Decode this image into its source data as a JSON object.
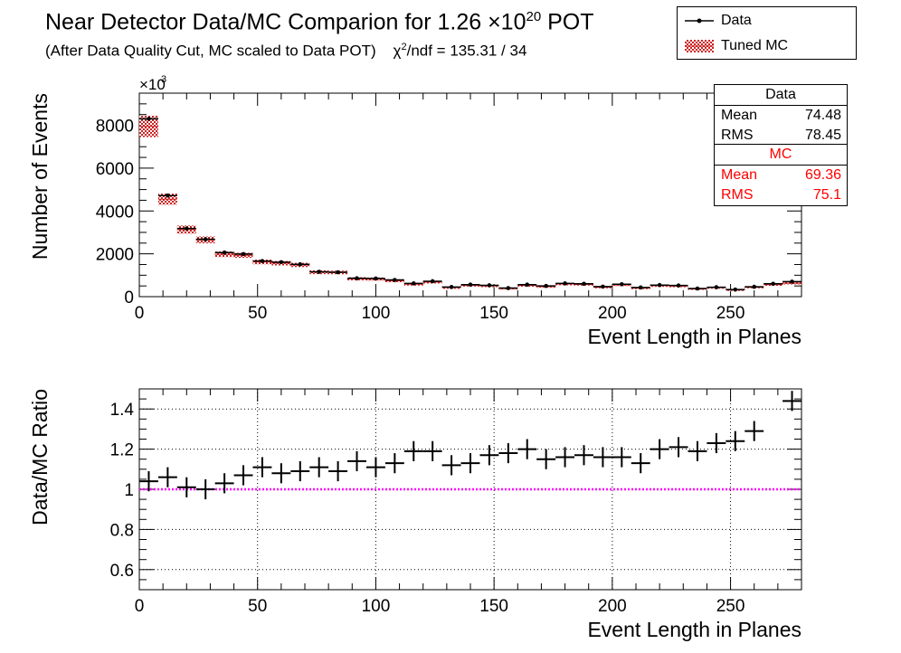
{
  "title": {
    "main": "Near Detector Data/MC Comparion for 1.26 ×10",
    "exp": "20",
    "suffix": " POT"
  },
  "subtitle": {
    "text": "(After Data Quality Cut, MC scaled to Data POT)",
    "chi_prefix": "χ",
    "chi_exp": "2",
    "chi_text": "/ndf = 135.31 / 34"
  },
  "legend": {
    "data_label": "Data",
    "mc_label": "Tuned MC"
  },
  "stats": {
    "data": {
      "header": "Data",
      "mean_label": "Mean",
      "mean": "74.48",
      "rms_label": "RMS",
      "rms": "78.45"
    },
    "mc": {
      "header": "MC",
      "mean_label": "Mean",
      "mean": "69.36",
      "rms_label": "RMS",
      "rms": "75.1"
    }
  },
  "colors": {
    "data": "#000000",
    "mc_fill": "#cc2222",
    "ratio_line": "#ff00ff",
    "grid": "#000000"
  },
  "chart_data": [
    {
      "type": "bar",
      "xlabel": "Event Length in Planes",
      "ylabel": "Number of Events",
      "y_multiplier_label": "×10",
      "y_multiplier_exp": "3",
      "xlim": [
        0,
        280
      ],
      "ylim": [
        0,
        9500
      ],
      "xticks": [
        0,
        50,
        100,
        150,
        200,
        250
      ],
      "yticks": [
        0,
        2000,
        4000,
        6000,
        8000
      ],
      "grid": false,
      "bin_width": 8,
      "x": [
        4,
        12,
        20,
        28,
        36,
        44,
        52,
        60,
        68,
        76,
        84,
        92,
        100,
        108,
        116,
        124,
        132,
        140,
        148,
        156,
        164,
        172,
        180,
        188,
        196,
        204,
        212,
        220,
        228,
        236,
        244,
        252,
        260,
        268,
        276
      ],
      "series": [
        {
          "name": "Data",
          "style": "points",
          "values": [
            8300,
            4720,
            3180,
            2680,
            2060,
            1990,
            1660,
            1610,
            1510,
            1160,
            1140,
            860,
            850,
            780,
            620,
            720,
            450,
            560,
            530,
            400,
            560,
            500,
            620,
            600,
            470,
            580,
            430,
            540,
            520,
            380,
            440,
            330,
            460,
            600,
            700
          ]
        },
        {
          "name": "Tuned MC",
          "style": "band",
          "values": [
            7950,
            4550,
            3130,
            2650,
            1980,
            1930,
            1620,
            1560,
            1480,
            1140,
            1130,
            830,
            820,
            740,
            580,
            680,
            420,
            530,
            500,
            380,
            520,
            470,
            590,
            570,
            440,
            550,
            400,
            510,
            490,
            360,
            420,
            310,
            440,
            560,
            630
          ],
          "errors": [
            500,
            260,
            190,
            160,
            130,
            120,
            110,
            105,
            100,
            90,
            85,
            75,
            75,
            70,
            65,
            65,
            55,
            60,
            55,
            50,
            55,
            55,
            60,
            55,
            50,
            55,
            50,
            55,
            50,
            45,
            50,
            45,
            50,
            55,
            60
          ]
        }
      ]
    },
    {
      "type": "scatter",
      "xlabel": "Event Length in Planes",
      "ylabel": "Data/MC Ratio",
      "xlim": [
        0,
        280
      ],
      "ylim": [
        0.5,
        1.5
      ],
      "xticks": [
        0,
        50,
        100,
        150,
        200,
        250
      ],
      "yticks": [
        0.6,
        0.8,
        1,
        1.2,
        1.4
      ],
      "grid": true,
      "reference_line": 1,
      "x": [
        4,
        12,
        20,
        28,
        36,
        44,
        52,
        60,
        68,
        76,
        84,
        92,
        100,
        108,
        116,
        124,
        132,
        140,
        148,
        156,
        164,
        172,
        180,
        188,
        196,
        204,
        212,
        220,
        228,
        236,
        244,
        252,
        260,
        268,
        276
      ],
      "series": [
        {
          "name": "",
          "values": [
            1.04,
            1.06,
            1.01,
            1.0,
            1.03,
            1.07,
            1.11,
            1.08,
            1.09,
            1.11,
            1.09,
            1.14,
            1.11,
            1.13,
            1.19,
            1.19,
            1.12,
            1.13,
            1.17,
            1.18,
            1.2,
            1.15,
            1.16,
            1.17,
            1.16,
            1.16,
            1.13,
            1.2,
            1.21,
            1.19,
            1.23,
            1.24,
            1.29,
            null,
            1.44
          ],
          "errors": [
            0.05,
            0.05,
            0.05,
            0.05,
            0.05,
            0.05,
            0.05,
            0.05,
            0.05,
            0.05,
            0.05,
            0.05,
            0.05,
            0.05,
            0.05,
            0.05,
            0.05,
            0.05,
            0.05,
            0.05,
            0.05,
            0.05,
            0.05,
            0.05,
            0.05,
            0.05,
            0.05,
            0.05,
            0.05,
            0.05,
            0.05,
            0.05,
            0.05,
            0.05,
            0.05
          ]
        }
      ]
    }
  ]
}
